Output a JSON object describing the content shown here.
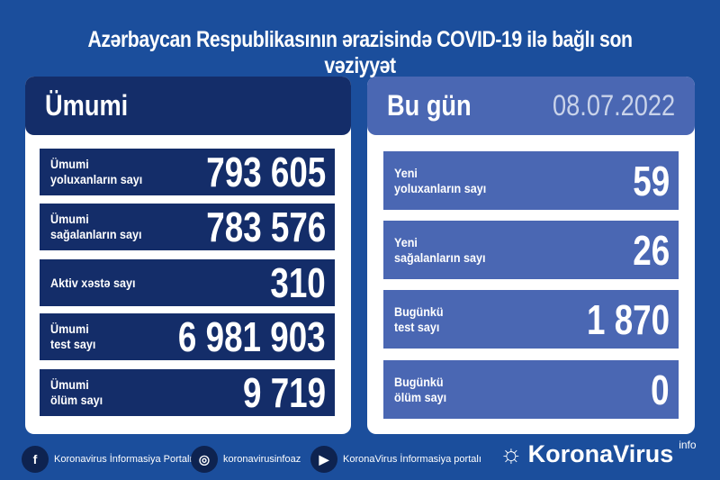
{
  "title": "Azərbaycan Respublikasının ərazisində COVID-19 ilə bağlı son vəziyyət",
  "total": {
    "heading": "Ümumi",
    "rows": [
      {
        "l1": "Ümumi",
        "l2": "yoluxanların sayı",
        "value": "793 605"
      },
      {
        "l1": "Ümumi",
        "l2": "sağalanların sayı",
        "value": "783 576"
      },
      {
        "l1": "Aktiv xəstə sayı",
        "l2": "",
        "value": "310"
      },
      {
        "l1": "Ümumi",
        "l2": "test sayı",
        "value": "6 981 903"
      },
      {
        "l1": "Ümumi",
        "l2": "ölüm sayı",
        "value": "9 719"
      }
    ]
  },
  "today": {
    "heading": "Bu gün",
    "date": "08.07.2022",
    "rows": [
      {
        "l1": "Yeni",
        "l2": "yoluxanların sayı",
        "value": "59"
      },
      {
        "l1": "Yeni",
        "l2": "sağalanların sayı",
        "value": "26"
      },
      {
        "l1": "Bugünkü",
        "l2": "test sayı",
        "value": "1 870"
      },
      {
        "l1": "Bugünkü",
        "l2": "ölüm sayı",
        "value": "0"
      }
    ]
  },
  "footer": {
    "facebook": "Koronavirus İnformasiya Portalı",
    "instagram": "koronavirusinfoaz",
    "youtube": "KoronaVirus İnformasiya portalı"
  },
  "logo": {
    "name": "KoronaVirus",
    "sup": "info"
  }
}
